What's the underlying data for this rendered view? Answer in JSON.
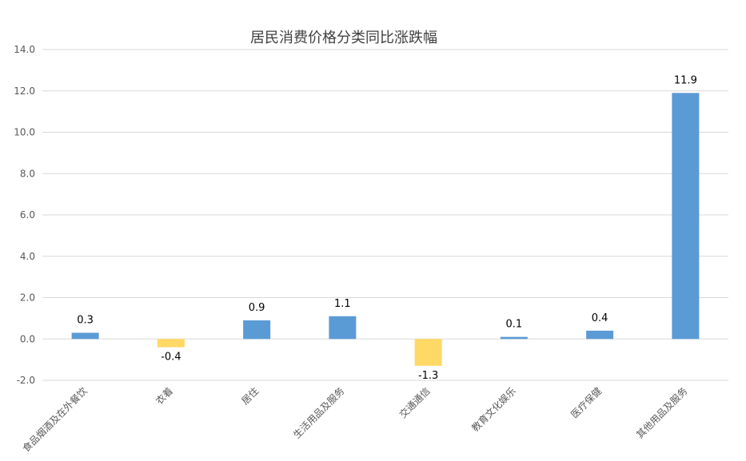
{
  "chart_data": {
    "type": "bar",
    "title": "居民消费价格分类同比涨跌幅",
    "xlabel": "",
    "ylabel": "",
    "categories": [
      "食品烟酒及在外餐饮",
      "衣着",
      "居住",
      "生活用品及服务",
      "交通通信",
      "教育文化娱乐",
      "医疗保健",
      "其他用品及服务"
    ],
    "values": [
      0.3,
      -0.4,
      0.9,
      1.1,
      -1.3,
      0.1,
      0.4,
      11.9
    ],
    "data_labels": [
      "0.3",
      "-0.4",
      "0.9",
      "1.1",
      "-1.3",
      "0.1",
      "0.4",
      "11.9"
    ],
    "ylim": [
      -2.0,
      14.0
    ],
    "yticks": [
      "-2.0",
      "0.0",
      "2.0",
      "4.0",
      "6.0",
      "8.0",
      "10.0",
      "12.0",
      "14.0"
    ],
    "grid": true,
    "legend": "none",
    "colors": {
      "positive": "#5B9BD5",
      "negative": "#FFD966",
      "grid": "#D9D9D9"
    }
  }
}
